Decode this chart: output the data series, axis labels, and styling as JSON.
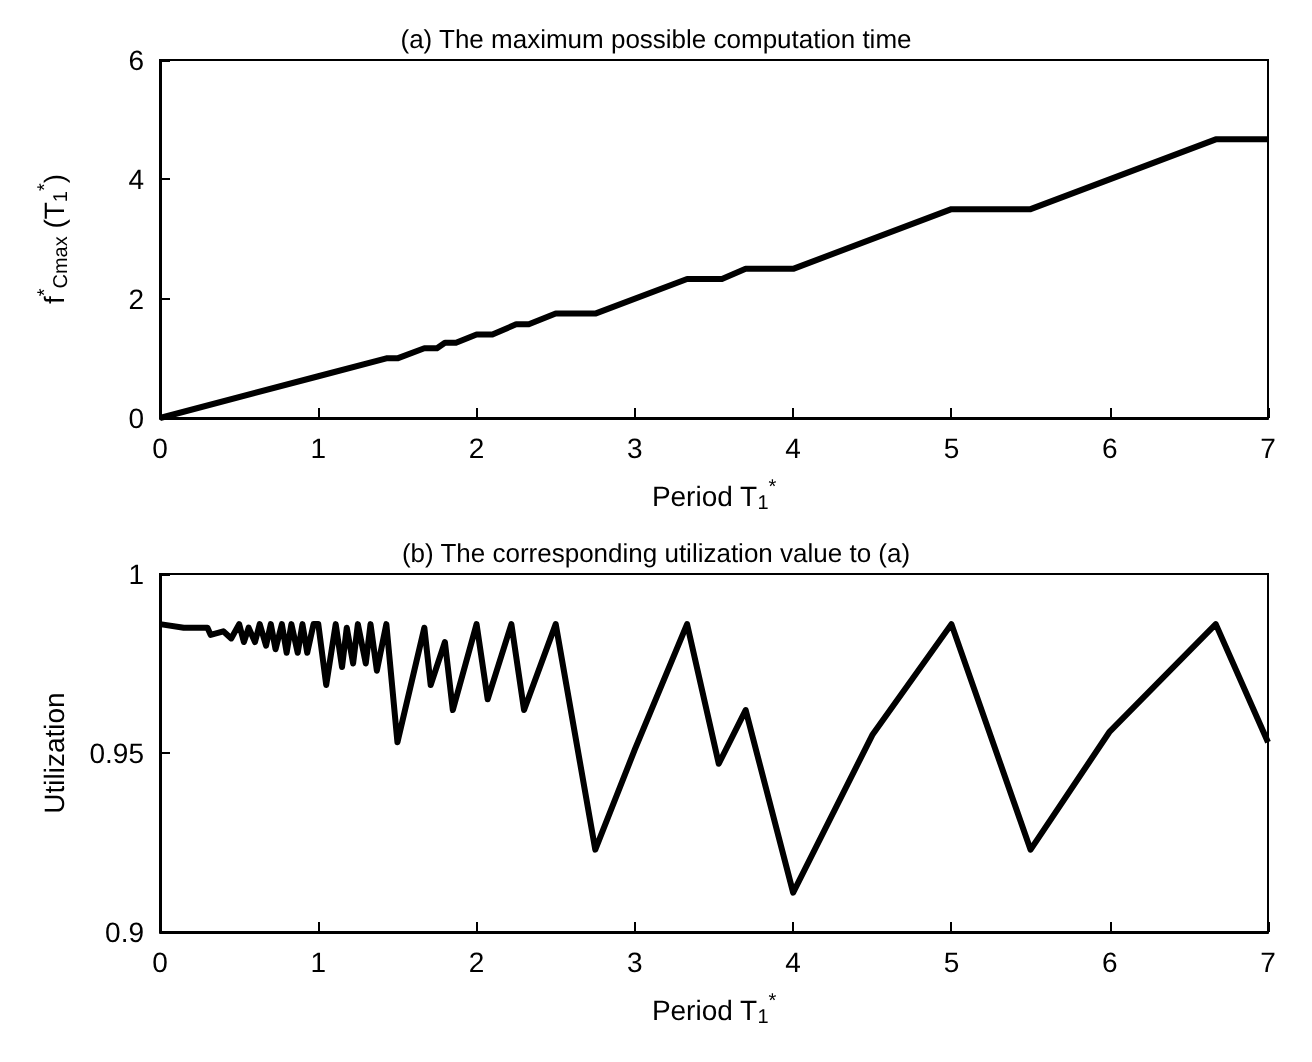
{
  "chart_data": [
    {
      "type": "line",
      "title": "(a) The maximum possible computation time",
      "xlabel": "Period T$_{1}$$^{*}$",
      "ylabel": "f$^{*}$$_{Cmax}$ (T$_{1}$$^{*}$)",
      "x": [
        0,
        1,
        1.43,
        1.5,
        1.67,
        1.75,
        1.8,
        1.87,
        2,
        2.1,
        2.25,
        2.33,
        2.5,
        2.75,
        3.33,
        3.55,
        3.7,
        4,
        5,
        5.5,
        6.67,
        7
      ],
      "values": [
        0,
        0.7,
        1.0,
        1.0,
        1.17,
        1.17,
        1.26,
        1.26,
        1.4,
        1.4,
        1.57,
        1.57,
        1.75,
        1.75,
        2.33,
        2.33,
        2.5,
        2.5,
        3.5,
        3.5,
        4.67,
        4.67
      ],
      "color": "#000000",
      "xlim": [
        0,
        7
      ],
      "xticks": [
        0,
        1,
        2,
        3,
        4,
        5,
        6,
        7
      ],
      "ylim": [
        0,
        6
      ],
      "yticks": [
        0,
        2,
        4,
        6
      ],
      "grid": false,
      "marker": "none",
      "line_style": "solid"
    },
    {
      "type": "line",
      "title": "(b) The corresponding utilization value to (a)",
      "xlabel": "Period T$_{1}$$^{*}$",
      "ylabel": "Utilization",
      "x": [
        0,
        0.15,
        0.3,
        0.32,
        0.4,
        0.45,
        0.5,
        0.53,
        0.56,
        0.6,
        0.63,
        0.67,
        0.7,
        0.73,
        0.77,
        0.8,
        0.83,
        0.87,
        0.9,
        0.93,
        0.97,
        1.0,
        1.05,
        1.11,
        1.15,
        1.18,
        1.22,
        1.25,
        1.3,
        1.33,
        1.37,
        1.43,
        1.5,
        1.67,
        1.71,
        1.8,
        1.85,
        2.0,
        2.07,
        2.22,
        2.3,
        2.5,
        2.75,
        3.0,
        3.33,
        3.53,
        3.7,
        4.0,
        4.5,
        5.0,
        5.5,
        6.0,
        6.67,
        7.0
      ],
      "values": [
        0.986,
        0.985,
        0.985,
        0.983,
        0.984,
        0.982,
        0.986,
        0.981,
        0.985,
        0.981,
        0.986,
        0.98,
        0.986,
        0.979,
        0.986,
        0.978,
        0.986,
        0.978,
        0.986,
        0.978,
        0.986,
        0.986,
        0.969,
        0.986,
        0.974,
        0.985,
        0.975,
        0.986,
        0.975,
        0.986,
        0.973,
        0.986,
        0.953,
        0.985,
        0.969,
        0.981,
        0.962,
        0.986,
        0.965,
        0.986,
        0.962,
        0.986,
        0.923,
        0.951,
        0.986,
        0.947,
        0.962,
        0.911,
        0.955,
        0.986,
        0.923,
        0.956,
        0.986,
        0.953
      ],
      "color": "#000000",
      "xlim": [
        0,
        7
      ],
      "xticks": [
        0,
        1,
        2,
        3,
        4,
        5,
        6,
        7
      ],
      "ylim": [
        0.9,
        1
      ],
      "yticks": [
        0.9,
        0.95,
        1
      ],
      "grid": false,
      "marker": "none",
      "line_style": "solid"
    }
  ]
}
